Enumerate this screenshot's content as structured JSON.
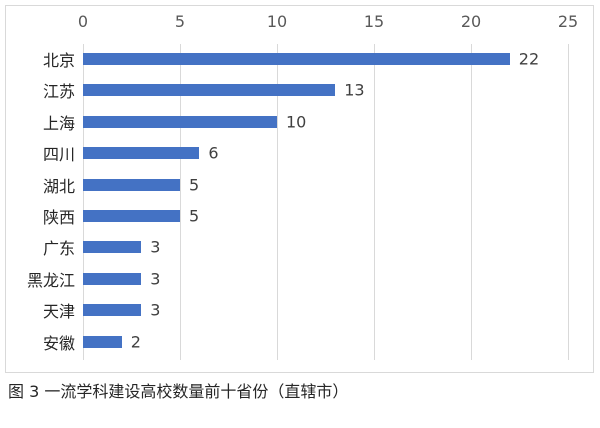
{
  "chart_data": {
    "type": "bar",
    "orientation": "horizontal",
    "title": "",
    "caption": "图 3 一流学科建设高校数量前十省份（直辖市）",
    "categories": [
      "北京",
      "江苏",
      "上海",
      "四川",
      "湖北",
      "陕西",
      "广东",
      "黑龙江",
      "天津",
      "安徽"
    ],
    "values": [
      22,
      13,
      10,
      6,
      5,
      5,
      3,
      3,
      3,
      2
    ],
    "xlabel": "",
    "ylabel": "",
    "xlim": [
      0,
      25
    ],
    "xticks": [
      0,
      5,
      10,
      15,
      20,
      25
    ],
    "x_axis_position": "top",
    "grid": true,
    "legend": null,
    "data_labels": true,
    "bar_color": "#4472c4"
  },
  "caption": "图 3 一流学科建设高校数量前十省份（直辖市）"
}
